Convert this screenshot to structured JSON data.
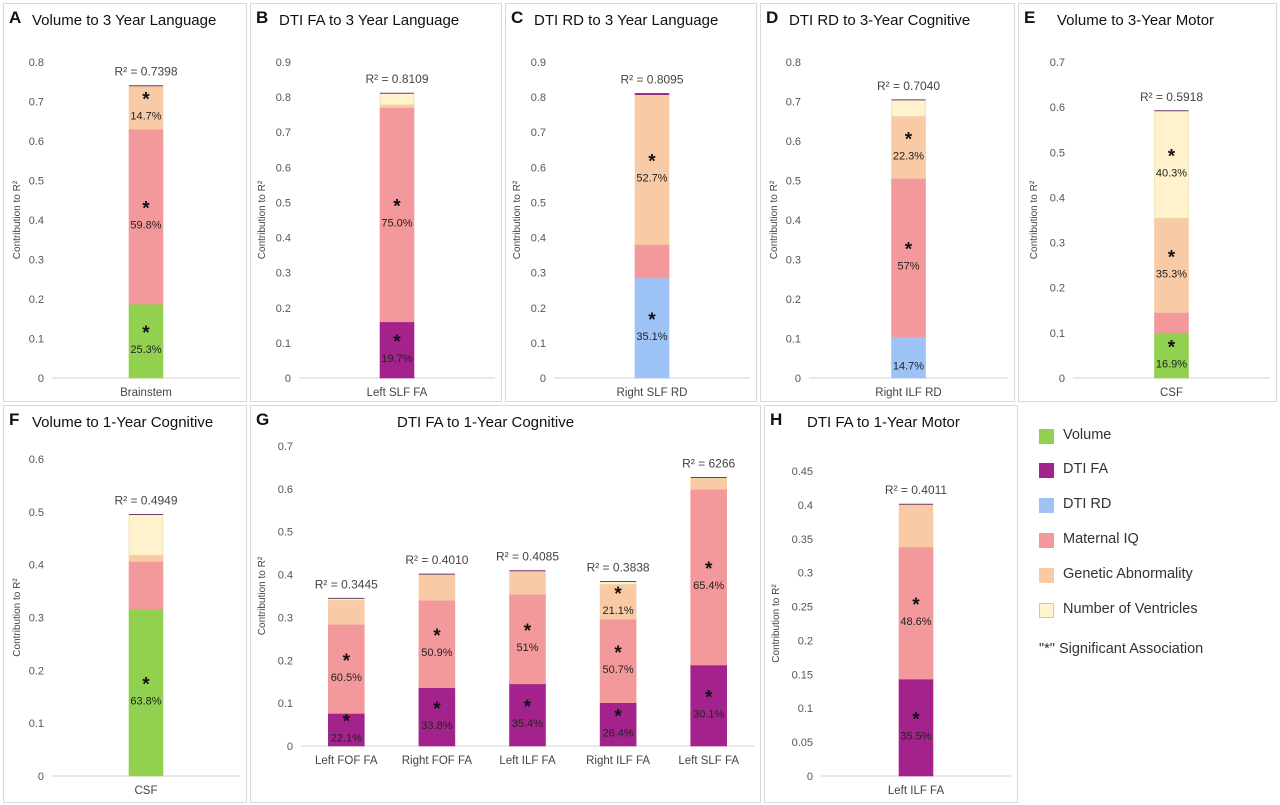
{
  "colors": {
    "Volume": "#92d050",
    "DTI FA": "#a3228b",
    "DTI RD": "#9dc3f6",
    "Maternal IQ": "#f4999b",
    "Genetic Abnormality": "#f8caa5",
    "Number of Ventricles": "#fff2cc"
  },
  "legend": {
    "items": [
      {
        "label": "Volume",
        "color": "#92d050"
      },
      {
        "label": "DTI FA",
        "color": "#a3228b"
      },
      {
        "label": "DTI RD",
        "color": "#9dc3f6"
      },
      {
        "label": "Maternal IQ",
        "color": "#f4999b"
      },
      {
        "label": "Genetic Abnormality",
        "color": "#f8caa5"
      },
      {
        "label": "Number of Ventricles",
        "color": "#fff2cc"
      }
    ],
    "significance_label": "\"*\" Significant Association"
  },
  "chart_data": [
    {
      "id": "A",
      "letter": "A",
      "type": "bar",
      "stacked": true,
      "title": "Volume to 3 Year Language",
      "ylabel": "Contribution to R²",
      "ylim": [
        0,
        0.8
      ],
      "ytick_step": 0.1,
      "ytick_labels": [
        "0",
        "0.1",
        "0.2",
        "0.3",
        "0.4",
        "0.5",
        "0.6",
        "0.7",
        "0.8"
      ],
      "categories": [
        "Brainstem"
      ],
      "r2_labels": [
        "R² = 0.7398"
      ],
      "series": [
        {
          "name": "Volume",
          "values": [
            0.187
          ],
          "labels": [
            "25.3%"
          ],
          "significant": [
            true
          ]
        },
        {
          "name": "Maternal IQ",
          "values": [
            0.443
          ],
          "labels": [
            "59.8%"
          ],
          "significant": [
            true
          ]
        },
        {
          "name": "Genetic Abnormality",
          "values": [
            0.11
          ],
          "labels": [
            "14.7%"
          ],
          "significant": [
            true
          ]
        }
      ]
    },
    {
      "id": "B",
      "letter": "B",
      "type": "bar",
      "stacked": true,
      "title": "DTI FA to 3 Year Language",
      "ylabel": "Contribution to R²",
      "ylim": [
        0,
        0.9
      ],
      "ytick_step": 0.1,
      "ytick_labels": [
        "0",
        "0.1",
        "0.2",
        "0.3",
        "0.4",
        "0.5",
        "0.6",
        "0.7",
        "0.8",
        "0.9"
      ],
      "categories": [
        "Left SLF FA"
      ],
      "r2_labels": [
        "R² = 0.8109"
      ],
      "series": [
        {
          "name": "DTI FA",
          "values": [
            0.16
          ],
          "labels": [
            "19.7%"
          ],
          "significant": [
            true
          ]
        },
        {
          "name": "Maternal IQ",
          "values": [
            0.61
          ],
          "labels": [
            "75.0%"
          ],
          "significant": [
            true
          ]
        },
        {
          "name": "Genetic Abnormality",
          "values": [
            0.008
          ],
          "labels": [
            ""
          ],
          "significant": [
            false
          ]
        },
        {
          "name": "Number of Ventricles",
          "values": [
            0.033
          ],
          "labels": [
            ""
          ],
          "significant": [
            false
          ]
        }
      ]
    },
    {
      "id": "C",
      "letter": "C",
      "type": "bar",
      "stacked": true,
      "title": "DTI RD to 3 Year Language",
      "ylabel": "Contribution to R²",
      "ylim": [
        0,
        0.9
      ],
      "ytick_step": 0.1,
      "ytick_labels": [
        "0",
        "0.1",
        "0.2",
        "0.3",
        "0.4",
        "0.5",
        "0.6",
        "0.7",
        "0.8",
        "0.9"
      ],
      "categories": [
        "Right SLF RD"
      ],
      "r2_labels": [
        "R² = 0.8095"
      ],
      "series": [
        {
          "name": "DTI RD",
          "values": [
            0.285
          ],
          "labels": [
            "35.1%"
          ],
          "significant": [
            true
          ]
        },
        {
          "name": "Maternal IQ",
          "values": [
            0.095
          ],
          "labels": [
            ""
          ],
          "significant": [
            false
          ]
        },
        {
          "name": "Genetic Abnormality",
          "values": [
            0.427
          ],
          "labels": [
            "52.7%"
          ],
          "significant": [
            true
          ]
        },
        {
          "name": "DTI FA",
          "values": [
            0.003
          ],
          "labels": [
            ""
          ],
          "significant": [
            false
          ]
        }
      ]
    },
    {
      "id": "D",
      "letter": "D",
      "type": "bar",
      "stacked": true,
      "title": "DTI RD to 3-Year Cognitive",
      "ylabel": "Contribution to R²",
      "ylim": [
        0,
        0.8
      ],
      "ytick_step": 0.1,
      "ytick_labels": [
        "0",
        "0.1",
        "0.2",
        "0.3",
        "0.4",
        "0.5",
        "0.6",
        "0.7",
        "0.8"
      ],
      "categories": [
        "Right ILF RD"
      ],
      "r2_labels": [
        "R² = 0.7040"
      ],
      "series": [
        {
          "name": "DTI RD",
          "values": [
            0.104
          ],
          "labels": [
            "14.7%"
          ],
          "significant": [
            false
          ]
        },
        {
          "name": "Maternal IQ",
          "values": [
            0.401
          ],
          "labels": [
            "57%"
          ],
          "significant": [
            true
          ]
        },
        {
          "name": "Genetic Abnormality",
          "values": [
            0.157
          ],
          "labels": [
            "22.3%"
          ],
          "significant": [
            true
          ]
        },
        {
          "name": "Number of Ventricles",
          "values": [
            0.042
          ],
          "labels": [
            ""
          ],
          "significant": [
            false
          ]
        }
      ]
    },
    {
      "id": "E",
      "letter": "E",
      "type": "bar",
      "stacked": true,
      "title": "Volume to 3-Year Motor",
      "ylabel": "Contribution to R²",
      "ylim": [
        0,
        0.7
      ],
      "ytick_step": 0.1,
      "ytick_labels": [
        "0",
        "0.1",
        "0.2",
        "0.3",
        "0.4",
        "0.5",
        "0.6",
        "0.7"
      ],
      "categories": [
        "CSF"
      ],
      "r2_labels": [
        "R² = 0.5918"
      ],
      "series": [
        {
          "name": "Volume",
          "values": [
            0.1
          ],
          "labels": [
            "16.9%"
          ],
          "significant": [
            true
          ]
        },
        {
          "name": "Maternal IQ",
          "values": [
            0.045
          ],
          "labels": [
            ""
          ],
          "significant": [
            false
          ]
        },
        {
          "name": "Genetic Abnormality",
          "values": [
            0.209
          ],
          "labels": [
            "35.3%"
          ],
          "significant": [
            true
          ]
        },
        {
          "name": "Number of Ventricles",
          "values": [
            0.238
          ],
          "labels": [
            "40.3%"
          ],
          "significant": [
            true
          ]
        }
      ]
    },
    {
      "id": "F",
      "letter": "F",
      "type": "bar",
      "stacked": true,
      "title": "Volume to 1-Year Cognitive",
      "ylabel": "Contribution to R²",
      "ylim": [
        0,
        0.6
      ],
      "ytick_step": 0.1,
      "ytick_labels": [
        "0",
        "0.1",
        "0.2",
        "0.3",
        "0.4",
        "0.5",
        "0.6"
      ],
      "categories": [
        "CSF"
      ],
      "r2_labels": [
        "R² = 0.4949"
      ],
      "series": [
        {
          "name": "Volume",
          "values": [
            0.316
          ],
          "labels": [
            "63.8%"
          ],
          "significant": [
            true
          ]
        },
        {
          "name": "Maternal IQ",
          "values": [
            0.09
          ],
          "labels": [
            ""
          ],
          "significant": [
            false
          ]
        },
        {
          "name": "Genetic Abnormality",
          "values": [
            0.012
          ],
          "labels": [
            ""
          ],
          "significant": [
            false
          ]
        },
        {
          "name": "Number of Ventricles",
          "values": [
            0.077
          ],
          "labels": [
            ""
          ],
          "significant": [
            false
          ]
        }
      ]
    },
    {
      "id": "G",
      "letter": "G",
      "type": "bar",
      "stacked": true,
      "title": "DTI FA to 1-Year Cognitive",
      "ylabel": "Contribution to R²",
      "ylim": [
        0,
        0.7
      ],
      "ytick_step": 0.1,
      "ytick_labels": [
        "0",
        "0.1",
        "0.2",
        "0.3",
        "0.4",
        "0.5",
        "0.6",
        "0.7"
      ],
      "categories": [
        "Left FOF FA",
        "Right FOF FA",
        "Left ILF FA",
        "Right ILF FA",
        "Left SLF FA"
      ],
      "r2_labels": [
        "R² = 0.3445",
        "R² = 0.4010",
        "R² = 0.4085",
        "R² = 0.3838",
        "R² = 6266"
      ],
      "series": [
        {
          "name": "DTI FA",
          "values": [
            0.076,
            0.136,
            0.145,
            0.101,
            0.189
          ],
          "labels": [
            "22.1%",
            "33.8%",
            "35.4%",
            "26.4%",
            "30.1%"
          ],
          "significant": [
            true,
            true,
            true,
            true,
            true
          ]
        },
        {
          "name": "Maternal IQ",
          "values": [
            0.208,
            0.204,
            0.209,
            0.195,
            0.41
          ],
          "labels": [
            "60.5%",
            "50.9%",
            "51%",
            "50.7%",
            "65.4%"
          ],
          "significant": [
            true,
            true,
            true,
            true,
            true
          ]
        },
        {
          "name": "Genetic Abnormality",
          "values": [
            0.056,
            0.061,
            0.055,
            0.081,
            0.027
          ],
          "labels": [
            "",
            "",
            "",
            "21.1%",
            ""
          ],
          "significant": [
            false,
            false,
            false,
            true,
            false
          ]
        },
        {
          "name": "Number of Ventricles",
          "values": [
            0.0045,
            0.0,
            0.0,
            0.0068,
            0.0006
          ],
          "labels": [
            "",
            "",
            "",
            "",
            ""
          ],
          "significant": [
            false,
            false,
            false,
            false,
            false
          ]
        }
      ]
    },
    {
      "id": "H",
      "letter": "H",
      "type": "bar",
      "stacked": true,
      "title": "DTI FA to 1-Year Motor",
      "ylabel": "Contribution to R²",
      "ylim": [
        0,
        0.45
      ],
      "ytick_step": 0.05,
      "ytick_labels": [
        "0",
        "0.05",
        "0.1",
        "0.15",
        "0.2",
        "0.25",
        "0.3",
        "0.35",
        "0.4",
        "0.45"
      ],
      "categories": [
        "Left ILF FA"
      ],
      "r2_labels": [
        "R² = 0.4011"
      ],
      "series": [
        {
          "name": "DTI FA",
          "values": [
            0.143
          ],
          "labels": [
            "35.5%"
          ],
          "significant": [
            true
          ]
        },
        {
          "name": "Maternal IQ",
          "values": [
            0.195
          ],
          "labels": [
            "48.6%"
          ],
          "significant": [
            true
          ]
        },
        {
          "name": "Genetic Abnormality",
          "values": [
            0.063
          ],
          "labels": [
            ""
          ],
          "significant": [
            false
          ]
        }
      ]
    }
  ]
}
